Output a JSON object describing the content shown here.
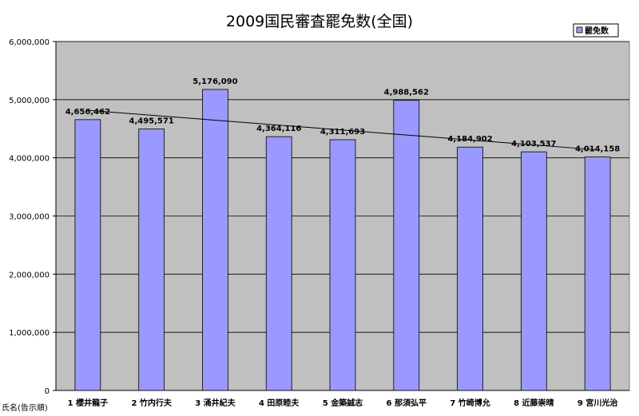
{
  "chart_data": {
    "type": "bar",
    "title": "2009国民審査罷免数(全国)",
    "xlabel": "氏名(告示順)",
    "ylabel": "",
    "ylim": [
      0,
      6000000
    ],
    "yticks": [
      "0",
      "1,000,000",
      "2,000,000",
      "3,000,000",
      "4,000,000",
      "5,000,000",
      "6,000,000"
    ],
    "ytick_values": [
      0,
      1000000,
      2000000,
      3000000,
      4000000,
      5000000,
      6000000
    ],
    "categories": [
      "1 櫻井龍子",
      "2 竹内行夫",
      "3 涌井紀夫",
      "4 田原睦夫",
      "5 金築誠志",
      "6 那須弘平",
      "7 竹崎博允",
      "8 近藤崇晴",
      "9 宮川光治"
    ],
    "series": [
      {
        "name": "罷免数",
        "values": [
          4656462,
          4495571,
          5176090,
          4364116,
          4311693,
          4988562,
          4184902,
          4103537,
          4014158
        ],
        "labels": [
          "4,656,462",
          "4,495,571",
          "5,176,090",
          "4,364,116",
          "4,311,693",
          "4,988,562",
          "4,184,902",
          "4,103,537",
          "4,014,158"
        ]
      }
    ],
    "trendline": "linear",
    "grid": true,
    "legend_position": "top-right",
    "colors": {
      "bar": "#9999ff",
      "plot_background": "#c0c0c0",
      "gridline": "#000000",
      "trendline": "#000000"
    }
  }
}
